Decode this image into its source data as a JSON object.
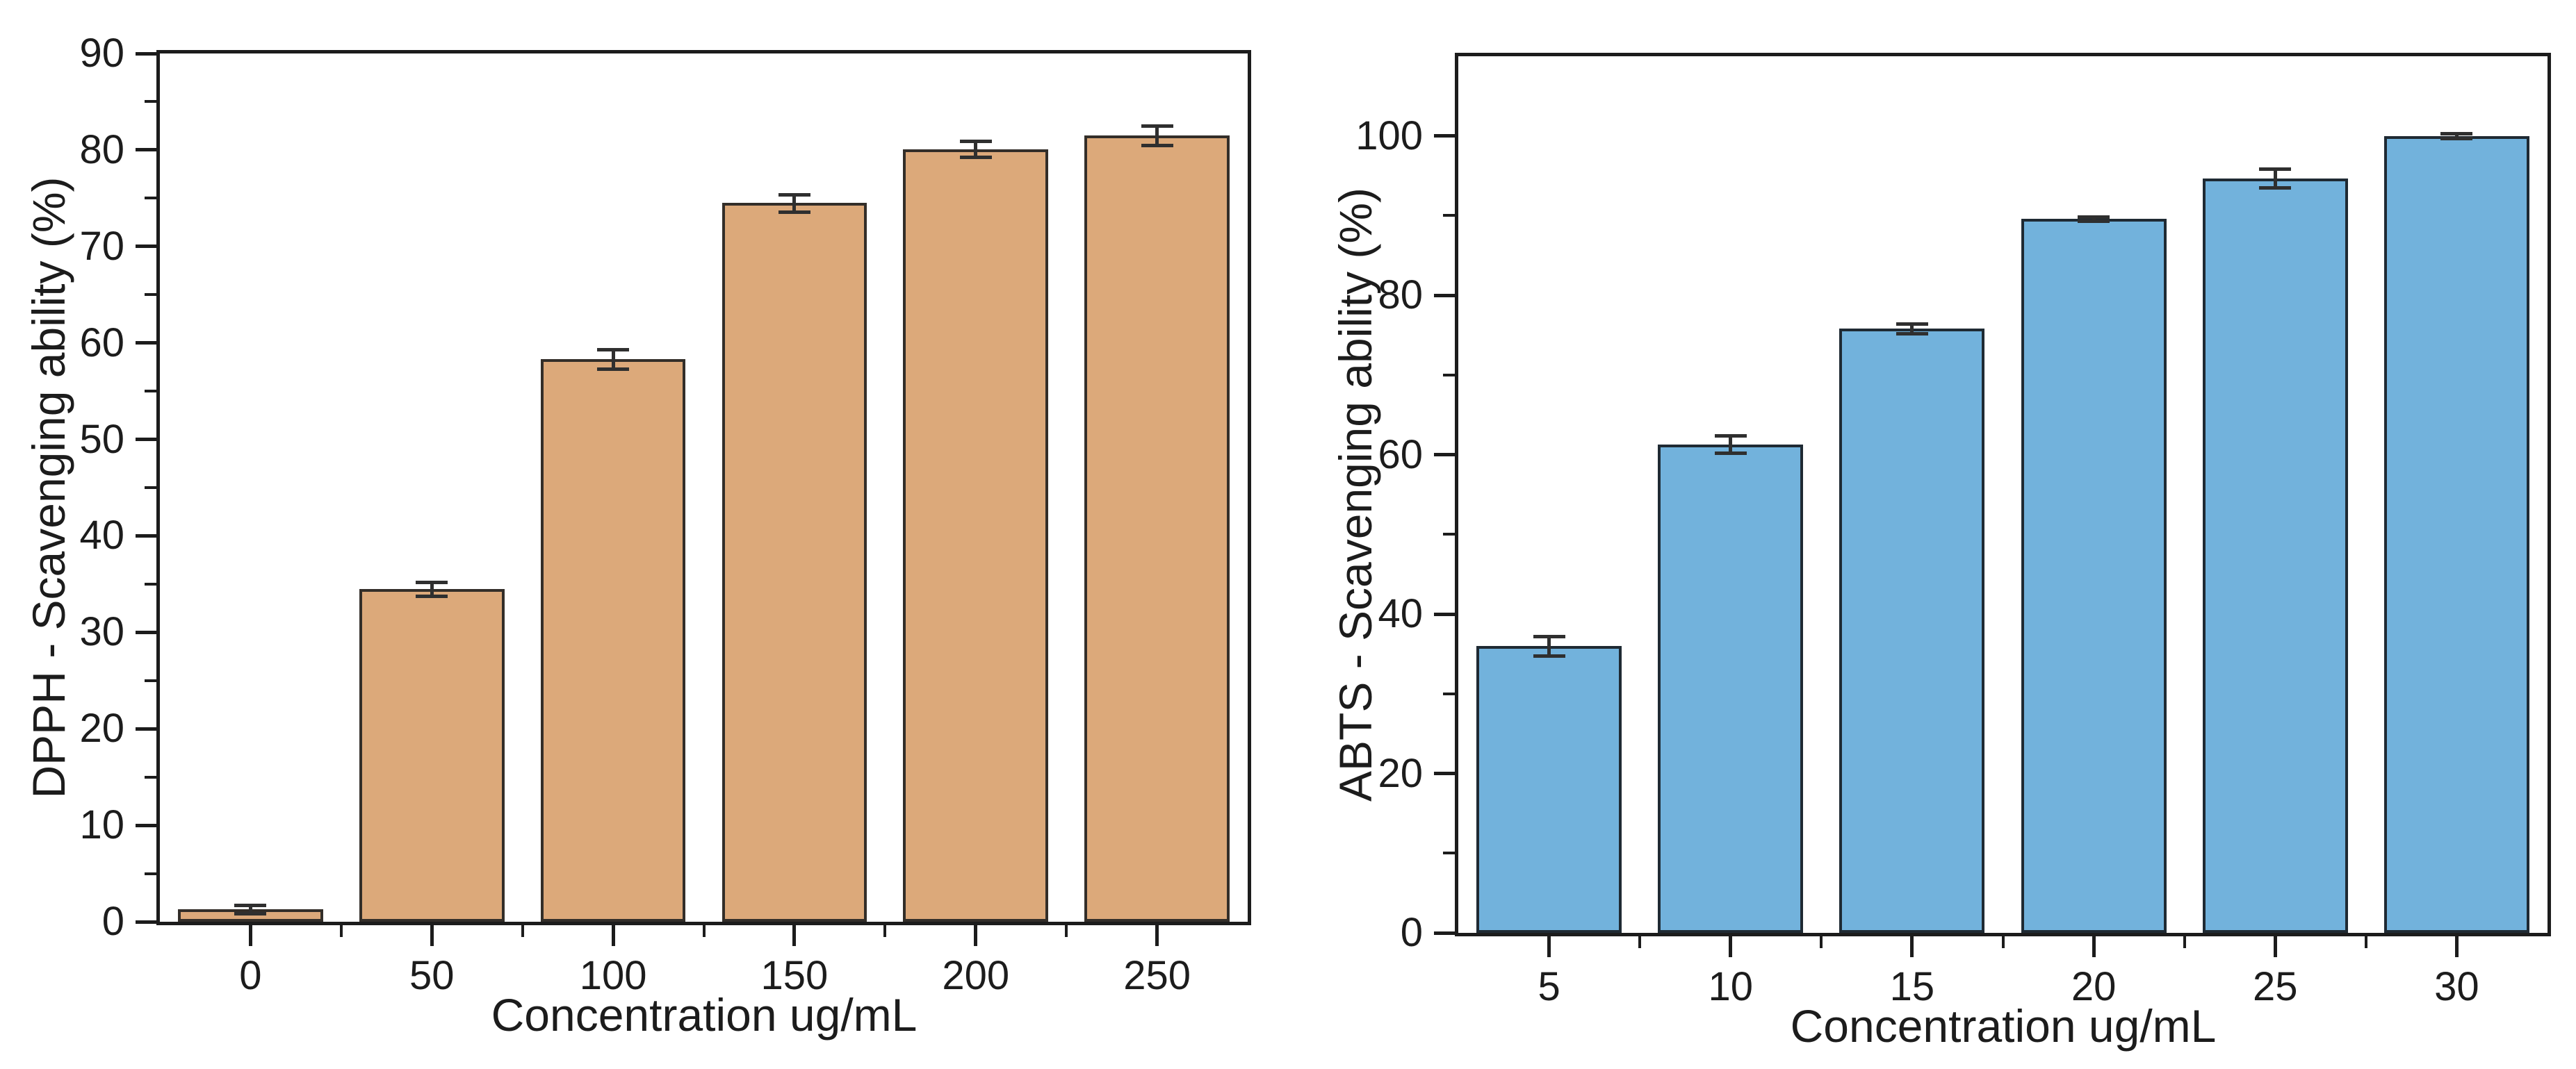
{
  "figure": {
    "background": "#ffffff",
    "axis_color": "#1c1c1c",
    "error_bar_color": "#2f2f2f"
  },
  "chart_data": [
    {
      "type": "bar",
      "title": "",
      "ylabel": "DPPH - Scavenging ability (%)",
      "xlabel": "Concentration ug/mL",
      "categories": [
        "0",
        "50",
        "100",
        "150",
        "200",
        "250"
      ],
      "values": [
        1.3,
        34.5,
        58.3,
        74.5,
        80.1,
        81.5
      ],
      "errors": [
        0.4,
        0.7,
        1.0,
        0.9,
        0.8,
        1.0
      ],
      "ylim": [
        0,
        90
      ],
      "y_ticks_labeled": [
        0,
        10,
        20,
        30,
        40,
        50,
        60,
        70,
        80,
        90
      ],
      "y_ticks_minor": [
        5,
        15,
        25,
        35,
        45,
        55,
        65,
        75,
        85
      ],
      "bar_color": "#DCA97A",
      "bar_edge_color": "#332E29",
      "grid": false,
      "legend": "none"
    },
    {
      "type": "bar",
      "title": "",
      "ylabel": "ABTS - Scavenging ability (%)",
      "xlabel": "Concentration ug/mL",
      "categories": [
        "5",
        "10",
        "15",
        "20",
        "25",
        "30"
      ],
      "values": [
        36.0,
        61.3,
        75.8,
        89.6,
        94.7,
        100.0
      ],
      "errors": [
        1.2,
        1.1,
        0.6,
        0.3,
        1.2,
        0.3
      ],
      "ylim": [
        0,
        110
      ],
      "y_ticks_labeled": [
        0,
        20,
        40,
        60,
        80,
        100
      ],
      "y_ticks_minor": [
        10,
        30,
        50,
        70,
        90
      ],
      "bar_color": "#72B2DC",
      "bar_edge_color": "#1F2A33",
      "grid": false,
      "legend": "none"
    }
  ]
}
